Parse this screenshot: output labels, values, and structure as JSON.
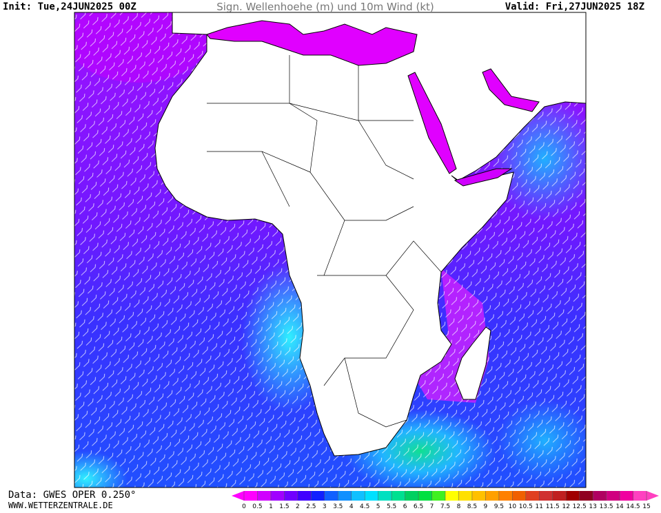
{
  "header": {
    "init": "Init: Tue,24JUN2025 00Z",
    "title": "Sign. Wellenhoehe (m) und 10m Wind (kt)",
    "valid": "Valid: Fri,27JUN2025 18Z"
  },
  "footer": {
    "source": "Data: GWES OPER 0.250°",
    "site": "WWW.WETTERZENTRALE.DE"
  },
  "colorbar": {
    "ticks": [
      0,
      0.5,
      1,
      1.5,
      2,
      2.5,
      3,
      3.5,
      4,
      4.5,
      5,
      5.5,
      6,
      6.5,
      7,
      7.5,
      8,
      8.5,
      9,
      9.5,
      10,
      10.5,
      11,
      11.5,
      12,
      12.5,
      13,
      13.5,
      14,
      14.5,
      15
    ],
    "colors": [
      "#ff00ff",
      "#d000ff",
      "#a000ff",
      "#7000ff",
      "#4000ff",
      "#1020ff",
      "#1060ff",
      "#1090ff",
      "#10c0ff",
      "#00e0ff",
      "#00e0c0",
      "#00e090",
      "#00d060",
      "#00e040",
      "#40f020",
      "#ffff00",
      "#ffe000",
      "#ffc000",
      "#ffa000",
      "#ff8000",
      "#f06000",
      "#e04020",
      "#d03030",
      "#c02020",
      "#a00000",
      "#900020",
      "#b00060",
      "#d00080",
      "#f000a0",
      "#ff40c0"
    ],
    "under_color": "#ff00ff",
    "over_color": "#ff40c0"
  }
}
